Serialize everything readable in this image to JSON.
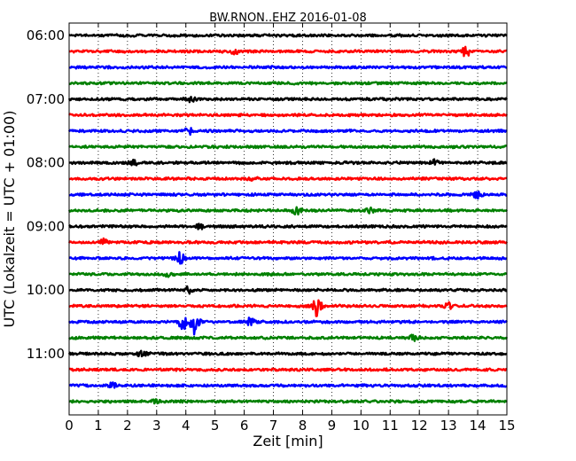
{
  "chart_data": {
    "type": "line",
    "title": "BW.RNON..EHZ 2016-01-08",
    "xlabel": "Zeit  [min]",
    "ylabel": "UTC (Lokalzeit = UTC + 01:00)",
    "xlim": [
      0,
      15
    ],
    "x_ticks": [
      "0",
      "1",
      "2",
      "3",
      "4",
      "5",
      "6",
      "7",
      "8",
      "9",
      "10",
      "11",
      "12",
      "13",
      "14",
      "15"
    ],
    "y_ticks": [
      "06:00",
      "07:00",
      "08:00",
      "09:00",
      "10:00",
      "11:00"
    ],
    "y_tick_rows": [
      0,
      4,
      8,
      12,
      16,
      20
    ],
    "grid": "vertical dotted",
    "colors_cycle": [
      "#000000",
      "#ff0000",
      "#0000ff",
      "#008000"
    ],
    "series": [
      {
        "start": "06:00",
        "color": "#000000",
        "events": []
      },
      {
        "start": "06:15",
        "color": "#ff0000",
        "events": [
          {
            "t": 5.7,
            "amp": 0.18
          },
          {
            "t": 13.6,
            "amp": 0.3
          }
        ]
      },
      {
        "start": "06:30",
        "color": "#0000ff",
        "events": []
      },
      {
        "start": "06:45",
        "color": "#008000",
        "events": []
      },
      {
        "start": "07:00",
        "color": "#000000",
        "events": [
          {
            "t": 4.2,
            "amp": 0.2
          }
        ]
      },
      {
        "start": "07:15",
        "color": "#ff0000",
        "events": []
      },
      {
        "start": "07:30",
        "color": "#0000ff",
        "events": [
          {
            "t": 4.1,
            "amp": 0.25
          }
        ]
      },
      {
        "start": "07:45",
        "color": "#008000",
        "events": []
      },
      {
        "start": "08:00",
        "color": "#000000",
        "events": [
          {
            "t": 2.2,
            "amp": 0.18
          },
          {
            "t": 12.5,
            "amp": 0.18
          }
        ]
      },
      {
        "start": "08:15",
        "color": "#ff0000",
        "events": [
          {
            "t": 6.3,
            "amp": 0.15
          }
        ]
      },
      {
        "start": "08:30",
        "color": "#0000ff",
        "events": [
          {
            "t": 14,
            "amp": 0.2
          }
        ]
      },
      {
        "start": "08:45",
        "color": "#008000",
        "events": [
          {
            "t": 7.8,
            "amp": 0.3
          },
          {
            "t": 10.3,
            "amp": 0.15
          }
        ]
      },
      {
        "start": "09:00",
        "color": "#000000",
        "events": [
          {
            "t": 4.5,
            "amp": 0.18
          }
        ]
      },
      {
        "start": "09:15",
        "color": "#ff0000",
        "events": [
          {
            "t": 1.2,
            "amp": 0.2
          }
        ]
      },
      {
        "start": "09:30",
        "color": "#0000ff",
        "events": [
          {
            "t": 3.8,
            "amp": 0.35
          }
        ]
      },
      {
        "start": "09:45",
        "color": "#008000",
        "events": [
          {
            "t": 3.4,
            "amp": 0.12
          }
        ]
      },
      {
        "start": "10:00",
        "color": "#000000",
        "events": [
          {
            "t": 4.1,
            "amp": 0.2
          }
        ]
      },
      {
        "start": "10:15",
        "color": "#ff0000",
        "events": [
          {
            "t": 8.5,
            "amp": 0.65
          },
          {
            "t": 13,
            "amp": 0.2
          }
        ]
      },
      {
        "start": "10:30",
        "color": "#0000ff",
        "events": [
          {
            "t": 3.9,
            "amp": 0.55
          },
          {
            "t": 4.3,
            "amp": 0.75
          },
          {
            "t": 6.2,
            "amp": 0.25
          }
        ]
      },
      {
        "start": "10:45",
        "color": "#008000",
        "events": [
          {
            "t": 11.8,
            "amp": 0.2
          }
        ]
      },
      {
        "start": "11:00",
        "color": "#000000",
        "events": [
          {
            "t": 2.5,
            "amp": 0.2
          }
        ]
      },
      {
        "start": "11:15",
        "color": "#ff0000",
        "events": []
      },
      {
        "start": "11:30",
        "color": "#0000ff",
        "events": [
          {
            "t": 1.5,
            "amp": 0.18
          }
        ]
      },
      {
        "start": "11:45",
        "color": "#008000",
        "events": [
          {
            "t": 2.9,
            "amp": 0.15
          }
        ]
      }
    ]
  }
}
